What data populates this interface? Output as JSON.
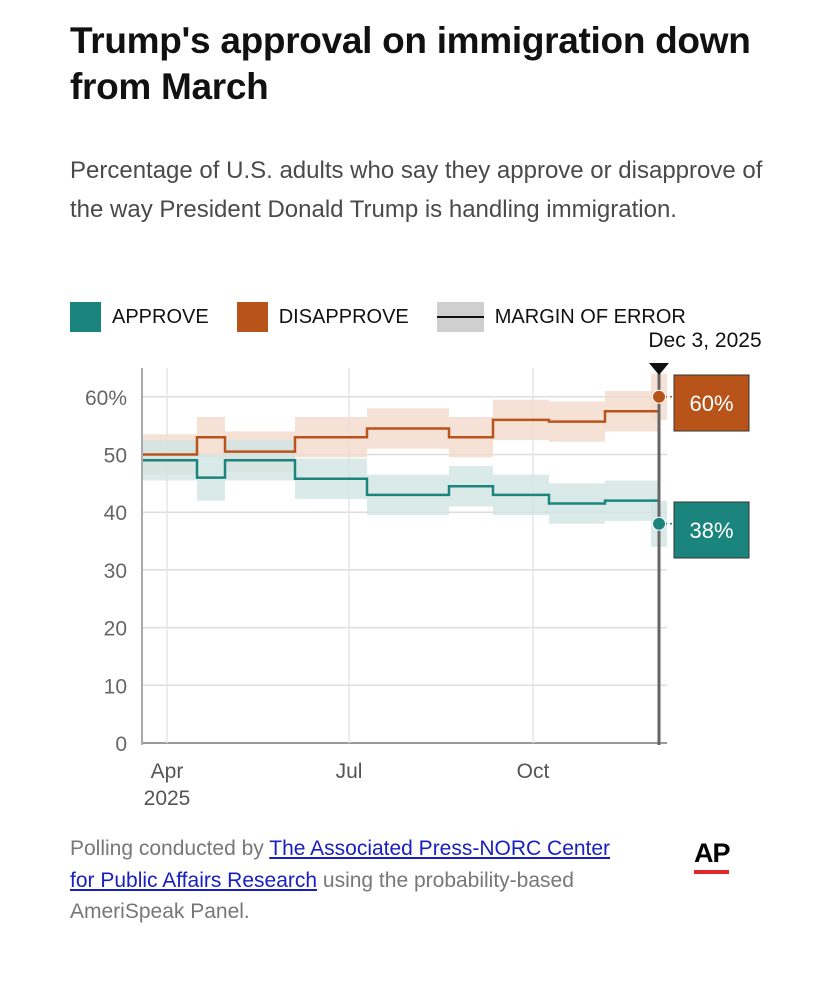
{
  "title": "Trump's approval on immigration down from March",
  "subtitle": "Percentage of U.S. adults who say they approve or disapprove of the way President Donald Trump is handling immigration.",
  "legend": {
    "approve": "APPROVE",
    "disapprove": "DISAPPROVE",
    "moe": "MARGIN OF ERROR"
  },
  "colors": {
    "approve": "#1b857d",
    "disapprove": "#b8541a",
    "approve_band": "#cfe5e4",
    "disapprove_band": "#f3d9cc"
  },
  "footer": {
    "pre": "Polling conducted by ",
    "link1": "The Associated Press-NORC Center for Public Affairs Research",
    "post": " using the probability-based AmeriSpeak Panel."
  },
  "logo": "AP",
  "chart_data": {
    "type": "line",
    "step": true,
    "title": "Trump's approval on immigration down from March",
    "ylabel": "",
    "xlabel": "",
    "ylim": [
      0,
      65
    ],
    "yticks": [
      "0",
      "10",
      "20",
      "30",
      "40",
      "50",
      "60%"
    ],
    "ytick_values": [
      0,
      10,
      20,
      30,
      40,
      50,
      60
    ],
    "xticks": [
      {
        "label": "Apr",
        "sub": "2025",
        "date": "2025-04-01"
      },
      {
        "label": "Jul",
        "date": "2025-07-01"
      },
      {
        "label": "Oct",
        "date": "2025-10-01"
      }
    ],
    "grid": true,
    "legend_position": "top",
    "period_starts": [
      "2025-03-20",
      "2025-04-16",
      "2025-04-30",
      "2025-06-04",
      "2025-07-10",
      "2025-08-20",
      "2025-09-11",
      "2025-10-09",
      "2025-11-06"
    ],
    "end_date": "2025-12-03",
    "series": [
      {
        "name": "Disapprove",
        "values": [
          50,
          53,
          50.5,
          53,
          54.5,
          53,
          56,
          55.7,
          57.5
        ],
        "moe": [
          3.5,
          3.5,
          3.5,
          3.5,
          3.5,
          3.5,
          3.5,
          3.5,
          3.5
        ],
        "latest": 60,
        "latest_moe": 4,
        "latest_label": "60%"
      },
      {
        "name": "Approve",
        "values": [
          49,
          46,
          49,
          45.8,
          43,
          44.5,
          43,
          41.5,
          42
        ],
        "moe": [
          3.5,
          4,
          3.5,
          3.5,
          3.5,
          3.5,
          3.5,
          3.5,
          3.5
        ],
        "latest": 38,
        "latest_moe": 4,
        "latest_label": "38%"
      }
    ],
    "marker_label": "Dec 3, 2025"
  }
}
